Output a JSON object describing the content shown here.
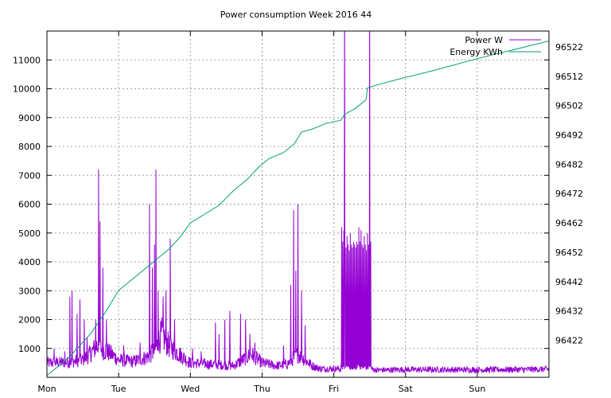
{
  "chart_data": {
    "type": "line",
    "title": "Power consumption Week 2016 44",
    "x_categories": [
      "Mon",
      "Tue",
      "Wed",
      "Thu",
      "Fri",
      "Sat",
      "Sun"
    ],
    "xlim_days": [
      0,
      7
    ],
    "y_left": {
      "ticks": [
        "1000",
        "2000",
        "3000",
        "4000",
        "5000",
        "6000",
        "7000",
        "8000",
        "9000",
        "10000",
        "11000"
      ],
      "ylim": [
        0,
        12000
      ]
    },
    "y_right": {
      "ticks": [
        "96422",
        "96432",
        "96442",
        "96452",
        "96462",
        "96472",
        "96482",
        "96492",
        "96502",
        "96512",
        "96522"
      ],
      "ylim": [
        96409.4,
        96527.4
      ]
    },
    "grid": true,
    "legend_position": "top-right",
    "colors": {
      "power": "#9400d3",
      "energy": "#009e73"
    },
    "series": [
      {
        "name": "Power W",
        "axis": "left",
        "baseline_points": [
          [
            0,
            500
          ],
          [
            0.3,
            520
          ],
          [
            0.5,
            600
          ],
          [
            0.6,
            800
          ],
          [
            0.7,
            1100
          ],
          [
            0.9,
            800
          ],
          [
            1.0,
            600
          ],
          [
            1.2,
            550
          ],
          [
            1.4,
            700
          ],
          [
            1.5,
            900
          ],
          [
            1.6,
            1500
          ],
          [
            1.7,
            1100
          ],
          [
            1.8,
            900
          ],
          [
            2.0,
            500
          ],
          [
            2.3,
            450
          ],
          [
            2.6,
            400
          ],
          [
            2.7,
            550
          ],
          [
            2.85,
            800
          ],
          [
            3.0,
            500
          ],
          [
            3.2,
            400
          ],
          [
            3.35,
            450
          ],
          [
            3.5,
            800
          ],
          [
            3.6,
            600
          ],
          [
            3.7,
            400
          ],
          [
            3.8,
            300
          ],
          [
            4.15,
            290
          ],
          [
            4.5,
            300
          ],
          [
            4.6,
            250
          ],
          [
            5.0,
            270
          ],
          [
            6.0,
            260
          ],
          [
            7.0,
            280
          ]
        ],
        "spikes": [
          [
            0.1,
            1000
          ],
          [
            0.25,
            900
          ],
          [
            0.32,
            2800
          ],
          [
            0.35,
            3000
          ],
          [
            0.42,
            2200
          ],
          [
            0.46,
            2700
          ],
          [
            0.52,
            2000
          ],
          [
            0.56,
            1400
          ],
          [
            0.68,
            2000
          ],
          [
            0.72,
            7200
          ],
          [
            0.74,
            5400
          ],
          [
            0.78,
            3800
          ],
          [
            0.83,
            2000
          ],
          [
            1.07,
            1100
          ],
          [
            1.3,
            1200
          ],
          [
            1.43,
            6000
          ],
          [
            1.47,
            3800
          ],
          [
            1.5,
            4600
          ],
          [
            1.52,
            7200
          ],
          [
            1.55,
            3000
          ],
          [
            1.62,
            2800
          ],
          [
            1.66,
            3000
          ],
          [
            1.72,
            4800
          ],
          [
            1.78,
            2000
          ],
          [
            2.03,
            1000
          ],
          [
            2.15,
            900
          ],
          [
            2.35,
            1900
          ],
          [
            2.4,
            1500
          ],
          [
            2.48,
            2000
          ],
          [
            2.55,
            2300
          ],
          [
            2.7,
            2200
          ],
          [
            2.77,
            2000
          ],
          [
            2.83,
            1500
          ],
          [
            2.9,
            1200
          ],
          [
            3.3,
            1100
          ],
          [
            3.4,
            3200
          ],
          [
            3.44,
            5800
          ],
          [
            3.47,
            3700
          ],
          [
            3.5,
            6000
          ],
          [
            3.55,
            3000
          ],
          [
            3.6,
            1800
          ]
        ],
        "high_band": [
          4.1,
          4.52
        ],
        "high_band_peaks": [
          5200,
          4700,
          5100,
          4600,
          4500,
          4900,
          4600,
          4400,
          5000,
          4600,
          4500,
          4700,
          4600,
          4500,
          4700,
          4600
        ],
        "off_scale_spikes": [
          4.15,
          4.5
        ]
      },
      {
        "name": "Energy KWh",
        "axis": "right",
        "points": [
          [
            0,
            96410
          ],
          [
            0.3,
            96416
          ],
          [
            0.6,
            96424
          ],
          [
            0.8,
            96431
          ],
          [
            1.0,
            96439
          ],
          [
            1.2,
            96443
          ],
          [
            1.4,
            96447
          ],
          [
            1.55,
            96450
          ],
          [
            1.7,
            96453
          ],
          [
            1.85,
            96457
          ],
          [
            2.0,
            96462
          ],
          [
            2.2,
            96465
          ],
          [
            2.4,
            96468
          ],
          [
            2.6,
            96473
          ],
          [
            2.8,
            96477
          ],
          [
            2.95,
            96481
          ],
          [
            3.1,
            96484
          ],
          [
            3.3,
            96486
          ],
          [
            3.45,
            96489
          ],
          [
            3.55,
            96493
          ],
          [
            3.7,
            96494
          ],
          [
            3.9,
            96496
          ],
          [
            4.1,
            96497
          ],
          [
            4.15,
            96499
          ],
          [
            4.3,
            96501
          ],
          [
            4.45,
            96504
          ],
          [
            4.47,
            96508
          ],
          [
            4.6,
            96509
          ],
          [
            4.9,
            96511
          ],
          [
            5.4,
            96514
          ],
          [
            6.0,
            96518
          ],
          [
            6.5,
            96521
          ],
          [
            7.0,
            96524
          ]
        ]
      }
    ]
  }
}
